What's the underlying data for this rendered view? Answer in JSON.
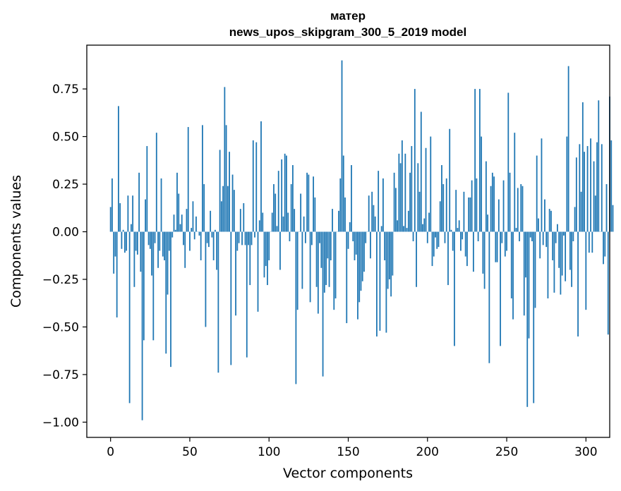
{
  "chart_data": {
    "type": "bar",
    "title": "матер",
    "subtitle": "news_upos_skipgram_300_5_2019 model",
    "xlabel": "Vector components",
    "ylabel": "Components values",
    "xlim": [
      -15,
      315
    ],
    "ylim": [
      -1.08,
      0.98
    ],
    "x_ticks": [
      0,
      50,
      100,
      150,
      200,
      250,
      300
    ],
    "x_tick_labels": [
      "0",
      "50",
      "100",
      "150",
      "200",
      "250",
      "300"
    ],
    "y_ticks": [
      0.75,
      0.5,
      0.25,
      0.0,
      -0.25,
      -0.5,
      -0.75,
      -1.0
    ],
    "y_tick_labels": [
      "0.75",
      "0.50",
      "0.25",
      "0.00",
      "−0.25",
      "−0.50",
      "−0.75",
      "−1.00"
    ],
    "bar_color": "#1f77b4",
    "values": [
      0.13,
      0.28,
      -0.22,
      -0.13,
      -0.45,
      0.66,
      0.15,
      -0.09,
      0.01,
      -0.11,
      -0.1,
      0.19,
      -0.9,
      0.04,
      0.19,
      -0.29,
      -0.1,
      -0.12,
      0.31,
      -0.21,
      -0.99,
      -0.57,
      0.17,
      0.45,
      -0.07,
      -0.09,
      -0.23,
      -0.57,
      -0.06,
      0.52,
      -0.19,
      -0.1,
      0.28,
      -0.13,
      -0.15,
      -0.64,
      -0.33,
      -0.1,
      -0.71,
      -0.03,
      0.09,
      0.01,
      0.31,
      0.2,
      0.04,
      0.09,
      -0.07,
      -0.19,
      0.12,
      0.55,
      -0.1,
      0.02,
      0.16,
      -0.04,
      0.08,
      0.0,
      -0.02,
      -0.15,
      0.56,
      0.25,
      -0.5,
      -0.06,
      -0.08,
      0.11,
      -0.03,
      -0.15,
      0.01,
      -0.2,
      -0.74,
      0.43,
      0.16,
      0.24,
      0.76,
      0.56,
      0.24,
      0.42,
      -0.7,
      0.3,
      0.22,
      -0.44,
      -0.1,
      -0.06,
      0.12,
      -0.07,
      0.15,
      -0.07,
      -0.66,
      -0.07,
      -0.28,
      -0.07,
      0.48,
      -0.03,
      0.47,
      -0.42,
      0.06,
      0.58,
      0.1,
      -0.24,
      -0.18,
      -0.28,
      -0.15,
      0.0,
      0.1,
      0.25,
      0.2,
      0.03,
      0.32,
      -0.2,
      0.38,
      0.08,
      0.41,
      0.4,
      0.1,
      -0.05,
      0.25,
      0.35,
      0.12,
      -0.8,
      -0.41,
      0.0,
      0.2,
      -0.3,
      0.08,
      -0.06,
      0.31,
      0.3,
      -0.37,
      -0.07,
      0.29,
      0.18,
      -0.29,
      -0.43,
      -0.06,
      -0.19,
      -0.76,
      -0.32,
      -0.28,
      -0.14,
      -0.29,
      -0.15,
      0.12,
      -0.41,
      -0.35,
      0.0,
      0.11,
      0.28,
      0.9,
      0.4,
      0.18,
      -0.48,
      -0.09,
      0.05,
      0.35,
      -0.05,
      -0.15,
      -0.12,
      -0.46,
      -0.37,
      -0.31,
      -0.26,
      -0.21,
      -0.06,
      0.0,
      0.19,
      -0.14,
      0.21,
      0.14,
      0.08,
      -0.55,
      0.32,
      -0.52,
      0.03,
      0.28,
      -0.15,
      -0.53,
      -0.3,
      -0.25,
      -0.34,
      -0.23,
      0.31,
      0.23,
      0.06,
      0.41,
      0.36,
      0.48,
      0.03,
      0.41,
      0.02,
      0.11,
      0.31,
      0.45,
      -0.05,
      0.75,
      -0.29,
      0.36,
      0.21,
      0.63,
      0.04,
      0.07,
      0.44,
      -0.06,
      0.1,
      0.5,
      -0.18,
      -0.13,
      -0.03,
      -0.09,
      -0.08,
      0.16,
      0.35,
      0.25,
      -0.06,
      0.28,
      -0.28,
      0.54,
      0.01,
      -0.1,
      -0.6,
      0.22,
      0.02,
      0.06,
      -0.1,
      -0.04,
      0.21,
      -0.13,
      -0.18,
      0.18,
      0.18,
      0.27,
      -0.21,
      0.75,
      0.28,
      -0.05,
      0.75,
      0.5,
      -0.22,
      -0.3,
      0.37,
      0.09,
      -0.69,
      0.24,
      0.31,
      0.29,
      -0.16,
      -0.16,
      0.17,
      -0.6,
      -0.06,
      0.27,
      -0.13,
      -0.1,
      0.73,
      0.31,
      -0.35,
      -0.46,
      0.52,
      0.02,
      0.23,
      -0.05,
      0.25,
      0.24,
      -0.44,
      -0.24,
      -0.92,
      -0.56,
      -0.03,
      -0.05,
      -0.9,
      -0.4,
      0.4,
      0.07,
      -0.14,
      0.49,
      -0.07,
      0.17,
      -0.08,
      -0.35,
      0.12,
      0.11,
      -0.15,
      -0.32,
      -0.06,
      0.04,
      -0.19,
      -0.33,
      -0.23,
      -0.02,
      -0.26,
      0.5,
      0.87,
      -0.2,
      -0.29,
      -0.05,
      0.13,
      0.39,
      -0.55,
      0.46,
      0.21,
      0.68,
      0.42,
      -0.41,
      0.45,
      -0.11,
      0.49,
      -0.11,
      0.37,
      0.19,
      0.47,
      0.69,
      0.0,
      0.46,
      -0.17,
      -0.13,
      0.25,
      -0.54,
      0.71,
      0.48,
      0.14
    ]
  }
}
